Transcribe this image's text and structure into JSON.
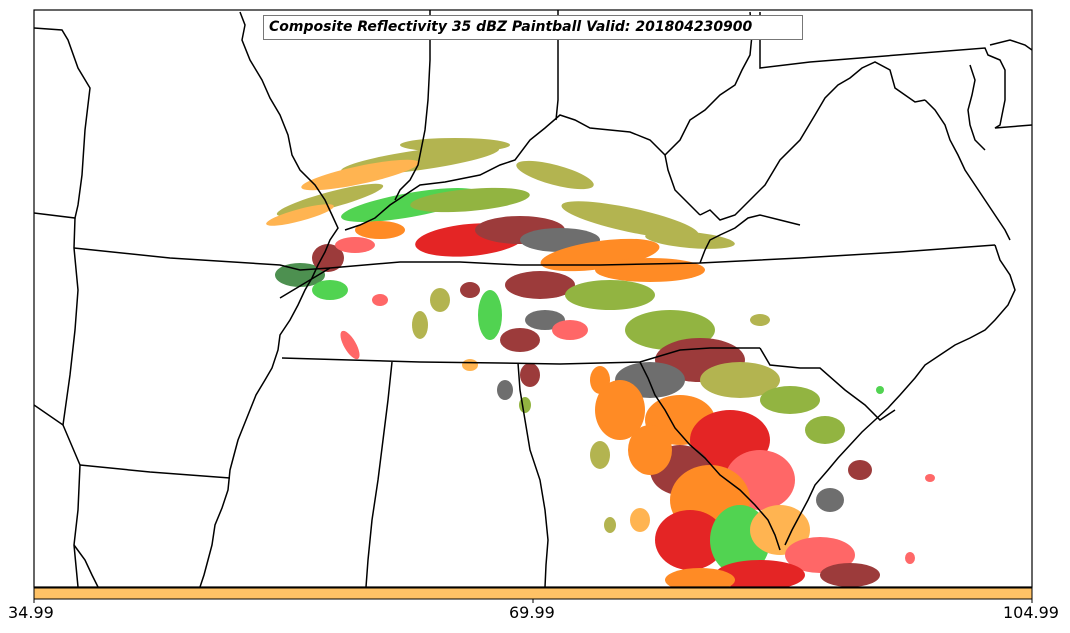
{
  "title": "Composite Reflectivity 35 dBZ Paintball Valid: 201804230900",
  "colorbar": {
    "ticks": [
      "34.99",
      "69.99",
      "104.99"
    ],
    "fill_color": "#ffc266",
    "value_min": 34.99,
    "value_max": 104.99
  },
  "paintball_colors": [
    "#ffa733",
    "#ff7700",
    "#e00000",
    "#ff4d4d",
    "#33cc33",
    "#7fa820",
    "#a6a832",
    "#2e7d32",
    "#8b1a1a",
    "#555555"
  ],
  "boundary_color": "#000000"
}
